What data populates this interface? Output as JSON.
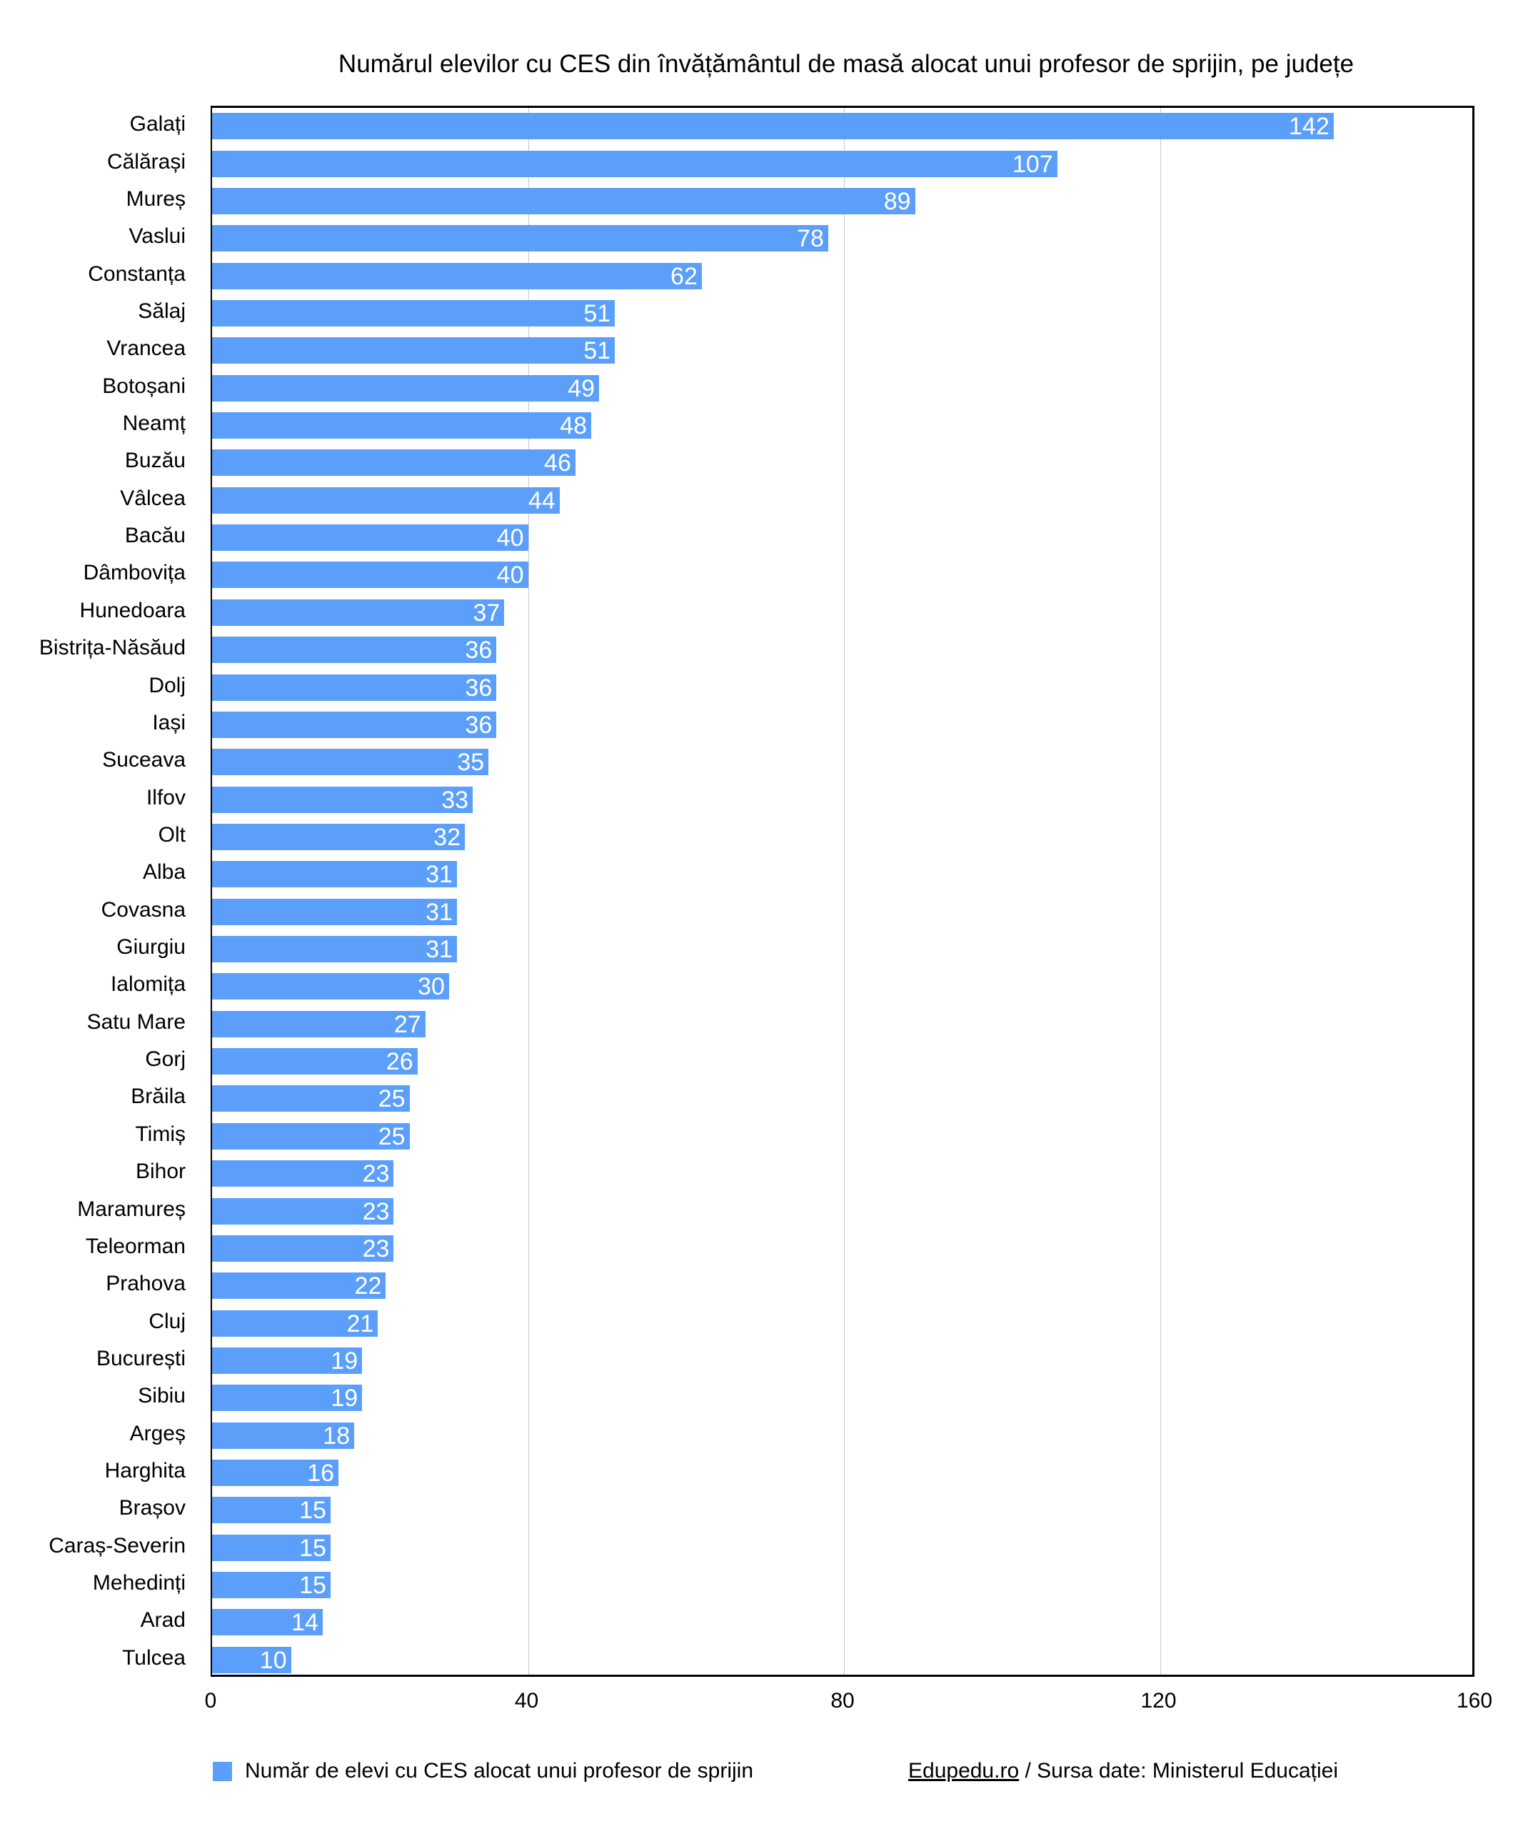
{
  "chart_data": {
    "type": "bar",
    "orientation": "horizontal",
    "title": "Numărul elevilor cu CES din învățământul de masă alocat unui profesor de sprijin, pe județe",
    "categories": [
      "Galați",
      "Călărași",
      "Mureș",
      "Vaslui",
      "Constanța",
      "Sălaj",
      "Vrancea",
      "Botoșani",
      "Neamț",
      "Buzău",
      "Vâlcea",
      "Bacău",
      "Dâmbovița",
      "Hunedoara",
      "Bistrița-Năsăud",
      "Dolj",
      "Iași",
      "Suceava",
      "Ilfov",
      "Olt",
      "Alba",
      "Covasna",
      "Giurgiu",
      "Ialomița",
      "Satu Mare",
      "Gorj",
      "Brăila",
      "Timiș",
      "Bihor",
      "Maramureș",
      "Teleorman",
      "Prahova",
      "Cluj",
      "București",
      "Sibiu",
      "Argeș",
      "Harghita",
      "Brașov",
      "Caraș-Severin",
      "Mehedinți",
      "Arad",
      "Tulcea"
    ],
    "values": [
      142,
      107,
      89,
      78,
      62,
      51,
      51,
      49,
      48,
      46,
      44,
      40,
      40,
      37,
      36,
      36,
      36,
      35,
      33,
      32,
      31,
      31,
      31,
      30,
      27,
      26,
      25,
      25,
      23,
      23,
      23,
      22,
      21,
      19,
      19,
      18,
      16,
      15,
      15,
      15,
      14,
      10
    ],
    "xlim": [
      0,
      160
    ],
    "xticks": [
      "0",
      "40",
      "80",
      "120",
      "160"
    ],
    "grid": true,
    "legend": {
      "label": "Număr de elevi cu CES alocat unui profesor de sprijin",
      "placement": "bottom-left",
      "color": "#5b9ffa"
    },
    "source": {
      "link": "Edupedu.ro",
      "text": " / Sursa date: Ministerul Educației"
    }
  }
}
